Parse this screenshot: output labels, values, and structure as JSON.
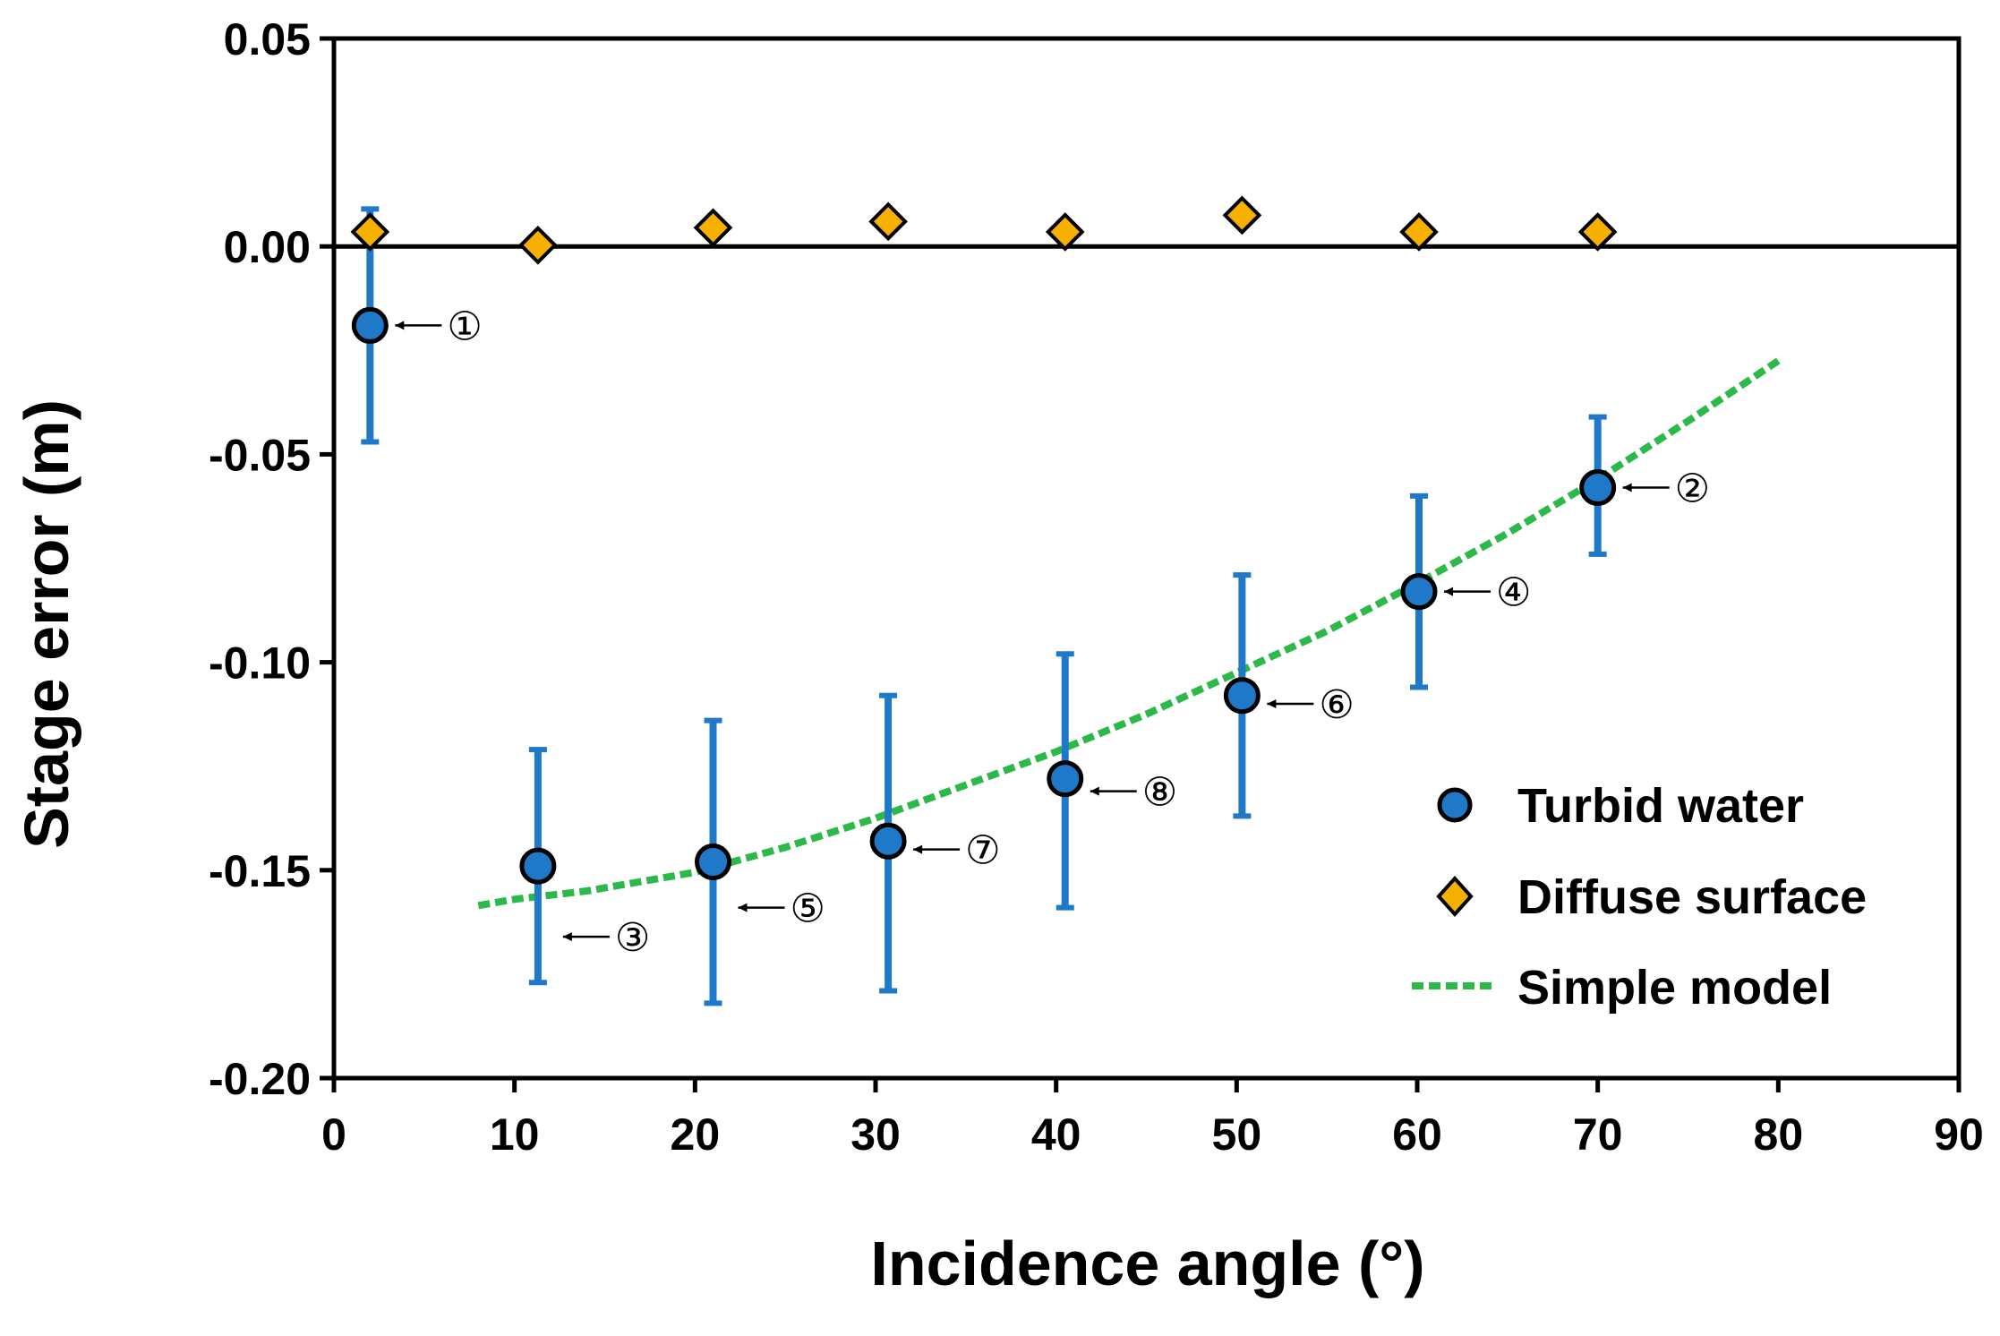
{
  "chart_data": {
    "type": "scatter",
    "xlabel": "Incidence angle (°)",
    "ylabel": "Stage error (m)",
    "xlim": [
      0,
      90
    ],
    "ylim": [
      -0.2,
      0.05
    ],
    "xticks": [
      0,
      10,
      20,
      30,
      40,
      50,
      60,
      70,
      80,
      90
    ],
    "xtick_labels": [
      "0",
      "10",
      "20",
      "30",
      "40",
      "50",
      "60",
      "70",
      "80",
      "90"
    ],
    "yticks": [
      0.05,
      0.0,
      -0.05,
      -0.1,
      -0.15,
      -0.2
    ],
    "ytick_labels": [
      "0.05",
      "0.00",
      "-0.05",
      "-0.10",
      "-0.15",
      "-0.20"
    ],
    "reference_line_y": 0.0,
    "grid": false,
    "legend_position": "bottom-right",
    "series": [
      {
        "name": "Turbid water",
        "marker": "circle",
        "color": "#1f78c8",
        "x": [
          2,
          11.3,
          21,
          30.7,
          40.5,
          50.3,
          60.1,
          70
        ],
        "y": [
          -0.019,
          -0.149,
          -0.148,
          -0.143,
          -0.128,
          -0.108,
          -0.083,
          -0.058
        ],
        "err_low": [
          -0.047,
          -0.177,
          -0.182,
          -0.179,
          -0.159,
          -0.137,
          -0.106,
          -0.074
        ],
        "err_high": [
          0.009,
          -0.121,
          -0.114,
          -0.108,
          -0.098,
          -0.079,
          -0.06,
          -0.041
        ]
      },
      {
        "name": "Diffuse surface",
        "marker": "diamond",
        "color": "#f5b000",
        "x": [
          2,
          11.3,
          21,
          30.7,
          40.5,
          50.3,
          60.1,
          70
        ],
        "y": [
          0.0035,
          0.0003,
          0.0045,
          0.006,
          0.0035,
          0.0075,
          0.0035,
          0.0035
        ]
      },
      {
        "name": "Simple model",
        "line": "dashed",
        "color": "#2db84a",
        "x": [
          8,
          10,
          14,
          20,
          25,
          30,
          35,
          40,
          45,
          50,
          55,
          60,
          65,
          70,
          75,
          80
        ],
        "y": [
          -0.1585,
          -0.157,
          -0.155,
          -0.1505,
          -0.1445,
          -0.1375,
          -0.1295,
          -0.1215,
          -0.1125,
          -0.1025,
          -0.0925,
          -0.081,
          -0.069,
          -0.056,
          -0.042,
          -0.0275
        ]
      }
    ],
    "annotations": [
      {
        "text": "①",
        "x": 2,
        "y": -0.019,
        "side": "right"
      },
      {
        "text": "②",
        "x": 70,
        "y": -0.058,
        "side": "right"
      },
      {
        "text": "③",
        "x": 11.3,
        "y": -0.166,
        "side": "right"
      },
      {
        "text": "④",
        "x": 60.1,
        "y": -0.083,
        "side": "right"
      },
      {
        "text": "⑤",
        "x": 21,
        "y": -0.159,
        "side": "right"
      },
      {
        "text": "⑥",
        "x": 50.3,
        "y": -0.11,
        "side": "right"
      },
      {
        "text": "⑦",
        "x": 30.7,
        "y": -0.145,
        "side": "right"
      },
      {
        "text": "⑧",
        "x": 40.5,
        "y": -0.131,
        "side": "right"
      }
    ]
  }
}
